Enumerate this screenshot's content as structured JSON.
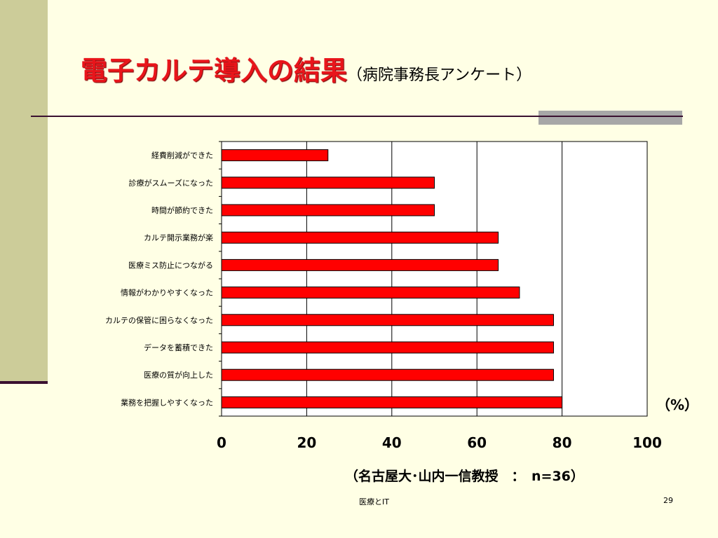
{
  "slide": {
    "title_main": "電子カルテ導入の結果",
    "title_sub": "（病院事務長アンケート）",
    "unit_label": "（%）",
    "source": "（名古屋大･山内一信教授　：　n=36）",
    "footer_center": "医療とIT",
    "page_number": "29"
  },
  "colors": {
    "background": "#FFFFE5",
    "bar_fill": "#FF0000",
    "title_red": "#E8151B",
    "band": "#CCCC99",
    "rule": "#3A1030"
  },
  "chart_data": {
    "type": "bar",
    "orientation": "horizontal",
    "categories": [
      "経費削減ができた",
      "診療がスムーズになった",
      "時間が節約できた",
      "カルテ開示業務が楽",
      "医療ミス防止につながる",
      "情報がわかりやすくなった",
      "カルテの保管に困らなくなった",
      "データを蓄積できた",
      "医療の質が向上した",
      "業務を把握しやすくなった"
    ],
    "values": [
      25,
      50,
      50,
      65,
      65,
      70,
      78,
      78,
      78,
      80
    ],
    "xlim": [
      0,
      100
    ],
    "xticks": [
      "0",
      "20",
      "40",
      "60",
      "80",
      "100"
    ],
    "grid": "vertical",
    "legend": "none"
  }
}
